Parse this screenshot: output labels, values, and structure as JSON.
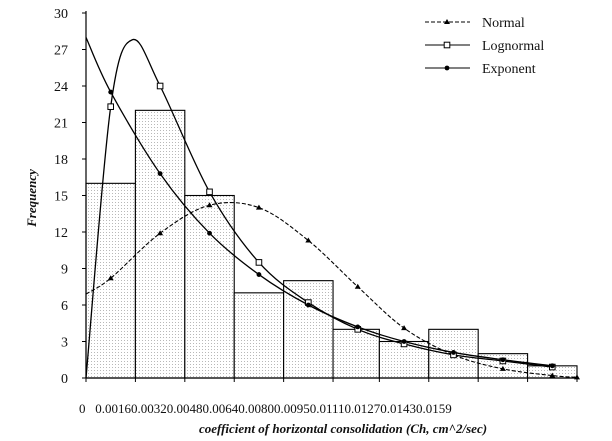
{
  "chart_data": {
    "type": "bar",
    "title": "",
    "xlabel": "coefficient of horizontal consolidation (Ch, cm^2/sec)",
    "ylabel": "Frequency",
    "ylim": [
      0,
      30
    ],
    "yticks": [
      0,
      3,
      6,
      9,
      12,
      15,
      18,
      21,
      24,
      27,
      30
    ],
    "xlim": [
      0,
      0.0159
    ],
    "xtick_text": "0   0.00160.00320.00480.00640.00800.00950.01110.01270.01430.0159",
    "bin_edges": [
      0,
      0.0016,
      0.0032,
      0.0048,
      0.0064,
      0.008,
      0.0095,
      0.0111,
      0.0127,
      0.0143,
      0.0159
    ],
    "histogram": [
      16,
      22,
      15,
      7,
      8,
      4,
      3,
      4,
      2,
      1
    ],
    "grid": false,
    "legend_position": "top-right",
    "series": [
      {
        "name": "Normal",
        "marker": "triangle",
        "x": [
          0,
          0.0008,
          0.0024,
          0.004,
          0.0056,
          0.0072,
          0.0088,
          0.0103,
          0.0119,
          0.0135,
          0.0151,
          0.0159
        ],
        "y": [
          6.9,
          8.2,
          11.9,
          14.2,
          14.0,
          11.3,
          7.5,
          4.1,
          1.9,
          0.75,
          0.2,
          0.05
        ]
      },
      {
        "name": "Lognormal",
        "marker": "square",
        "x": [
          0,
          0.0008,
          0.0024,
          0.004,
          0.0056,
          0.0072,
          0.0088,
          0.0103,
          0.0119,
          0.0135,
          0.0151
        ],
        "y": [
          0,
          22.3,
          24.0,
          15.3,
          9.5,
          6.2,
          4.0,
          2.8,
          1.9,
          1.4,
          0.9
        ],
        "peak": [
          0.0015,
          27.8
        ]
      },
      {
        "name": "Exponent",
        "marker": "dot",
        "x": [
          0,
          0.0008,
          0.0024,
          0.004,
          0.0056,
          0.0072,
          0.0088,
          0.0103,
          0.0119,
          0.0135,
          0.0151
        ],
        "y": [
          28.0,
          23.5,
          16.8,
          11.9,
          8.5,
          6.0,
          4.2,
          3.0,
          2.1,
          1.5,
          1.0
        ]
      }
    ]
  }
}
